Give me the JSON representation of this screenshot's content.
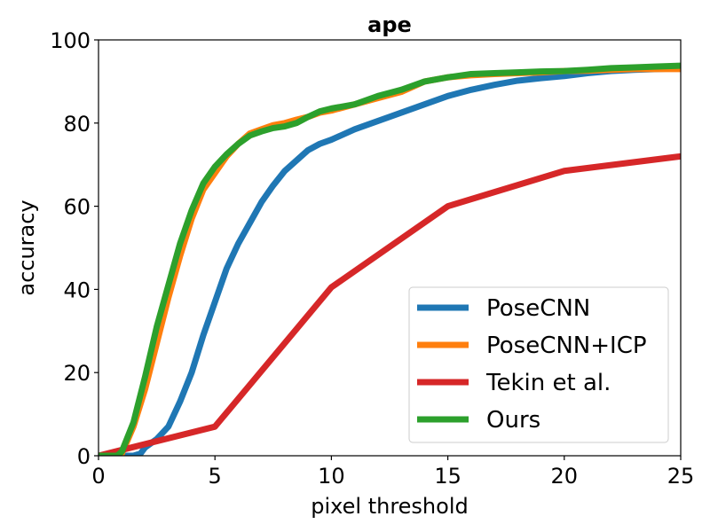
{
  "chart_data": {
    "type": "line",
    "title": "ape",
    "xlabel": "pixel threshold",
    "ylabel": "accuracy",
    "xlim": [
      0,
      25
    ],
    "ylim": [
      0,
      100
    ],
    "xticks": [
      0,
      5,
      10,
      15,
      20,
      25
    ],
    "yticks": [
      0,
      20,
      40,
      60,
      80,
      100
    ],
    "grid": false,
    "legend_position": "bottom-right",
    "series": [
      {
        "name": "PoseCNN",
        "color": "#1f77b4",
        "x": [
          0,
          1,
          1.5,
          1.8,
          2,
          2.5,
          3,
          3.5,
          4,
          4.5,
          5,
          5.5,
          6,
          6.5,
          7,
          7.5,
          8,
          8.5,
          9,
          9.5,
          10,
          11,
          12,
          13,
          14,
          15,
          16,
          17,
          18,
          19,
          20,
          21,
          22,
          23,
          24,
          25
        ],
        "values": [
          0,
          0,
          0,
          0.5,
          2,
          4,
          7,
          13,
          20,
          29,
          37,
          45,
          51,
          56,
          61,
          65,
          68.5,
          71,
          73.5,
          75,
          76,
          78.5,
          80.5,
          82.5,
          84.5,
          86.5,
          88,
          89.2,
          90.2,
          90.8,
          91.3,
          92,
          92.5,
          92.8,
          93,
          93.2
        ]
      },
      {
        "name": "PoseCNN+ICP",
        "color": "#ff7f0e",
        "x": [
          0,
          0.8,
          1,
          1.5,
          2,
          2.5,
          3,
          3.5,
          4,
          4.5,
          5,
          5.5,
          6,
          6.5,
          7,
          7.5,
          8,
          8.5,
          9,
          9.5,
          10,
          11,
          12,
          13,
          14,
          15,
          16,
          17,
          18,
          19,
          20,
          21,
          22,
          23,
          24,
          25
        ],
        "values": [
          0,
          0,
          0.5,
          7,
          16,
          27,
          38,
          48,
          57,
          64,
          68,
          72,
          75,
          77.5,
          78.5,
          79.5,
          80,
          80.8,
          81.5,
          82.5,
          83,
          84.5,
          86,
          87.5,
          90,
          91,
          91.5,
          91.8,
          92,
          92.2,
          92.5,
          92.6,
          92.8,
          93,
          93,
          93
        ]
      },
      {
        "name": "Tekin et al.",
        "color": "#d62728",
        "x": [
          0,
          5,
          10,
          15,
          20,
          25
        ],
        "values": [
          0,
          7,
          40.5,
          60,
          68.5,
          72
        ]
      },
      {
        "name": "Ours",
        "color": "#2ca02c",
        "x": [
          0,
          0.8,
          1,
          1.5,
          2,
          2.5,
          3,
          3.5,
          4,
          4.5,
          5,
          5.5,
          6,
          6.5,
          7,
          7.5,
          8,
          8.5,
          9,
          9.5,
          10,
          11,
          12,
          13,
          14,
          15,
          16,
          17,
          18,
          19,
          20,
          21,
          22,
          23,
          24,
          25
        ],
        "values": [
          0,
          0,
          1,
          8,
          19,
          31,
          41,
          51,
          59,
          65.5,
          69.5,
          72.5,
          75,
          77,
          78,
          78.8,
          79.2,
          80,
          81.5,
          82.8,
          83.5,
          84.5,
          86.5,
          88,
          90,
          91,
          91.8,
          92,
          92.2,
          92.4,
          92.5,
          92.8,
          93.2,
          93.4,
          93.6,
          93.8
        ]
      }
    ]
  }
}
